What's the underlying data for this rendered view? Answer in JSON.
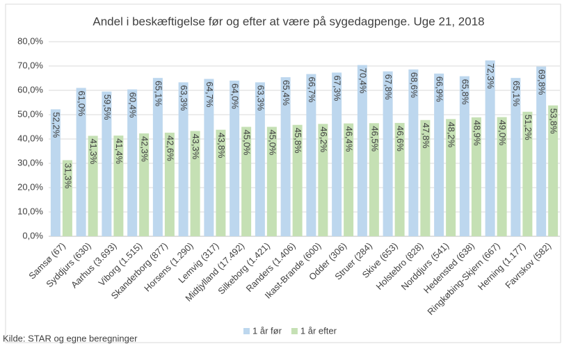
{
  "chart_data": {
    "type": "bar",
    "title": "Andel i beskæftigelse før og efter at være på sygedagpenge. Uge 21, 2018",
    "source": "Kilde: STAR og egne beregninger",
    "categories": [
      "Samsø (67)",
      "Syddjurs (630)",
      "Aarhus (3.693)",
      "Viborg (1.515)",
      "Skanderborg (877)",
      "Horsens (1.290)",
      "Lemvig (317)",
      "Midtjylland (17.492)",
      "Silkeborg (1.421)",
      "Randers (1.406)",
      "Ikast-Brande (600)",
      "Odder (306)",
      "Struer (284)",
      "Skive (653)",
      "Holstebro (828)",
      "Norddjurs (541)",
      "Hedensted (638)",
      "Ringkøbing-Skjern (667)",
      "Herning (1.177)",
      "Favrskov (582)"
    ],
    "series": [
      {
        "name": "1 år før",
        "color": "#bdd7ee",
        "values": [
          52.2,
          61.0,
          59.5,
          60.4,
          65.1,
          63.3,
          64.7,
          64.0,
          63.3,
          65.4,
          66.7,
          67.3,
          70.4,
          67.8,
          68.6,
          66.9,
          65.8,
          72.3,
          65.1,
          69.8
        ],
        "value_labels": [
          "52,2%",
          "61,0%",
          "59,5%",
          "60,4%",
          "65,1%",
          "63,3%",
          "64,7%",
          "64,0%",
          "63,3%",
          "65,4%",
          "66,7%",
          "67,3%",
          "70,4%",
          "67,8%",
          "68,6%",
          "66,9%",
          "65,8%",
          "72,3%",
          "65,1%",
          "69,8%"
        ]
      },
      {
        "name": "1 år efter",
        "color": "#c5e0b4",
        "values": [
          31.3,
          41.3,
          41.4,
          42.3,
          42.6,
          43.3,
          43.8,
          45.0,
          45.0,
          45.8,
          46.2,
          46.4,
          46.5,
          46.6,
          47.8,
          48.2,
          48.9,
          49.0,
          51.2,
          53.8
        ],
        "value_labels": [
          "31,3%",
          "41,3%",
          "41,4%",
          "42,3%",
          "42,6%",
          "43,3%",
          "43,8%",
          "45,0%",
          "45,0%",
          "45,8%",
          "46,2%",
          "46,4%",
          "46,5%",
          "46,6%",
          "47,8%",
          "48,2%",
          "48,9%",
          "49,0%",
          "51,2%",
          "53,8%"
        ]
      }
    ],
    "ylim": [
      0,
      80
    ],
    "yticks": [
      {
        "value": 0,
        "label": "0,0%"
      },
      {
        "value": 10,
        "label": "10,0%"
      },
      {
        "value": 20,
        "label": "20,0%"
      },
      {
        "value": 30,
        "label": "30,0%"
      },
      {
        "value": 40,
        "label": "40,0%"
      },
      {
        "value": 50,
        "label": "50,0%"
      },
      {
        "value": 60,
        "label": "60,0%"
      },
      {
        "value": 70,
        "label": "70,0%"
      },
      {
        "value": 80,
        "label": "80,0%"
      }
    ],
    "grid": true,
    "legend": "bottom"
  }
}
